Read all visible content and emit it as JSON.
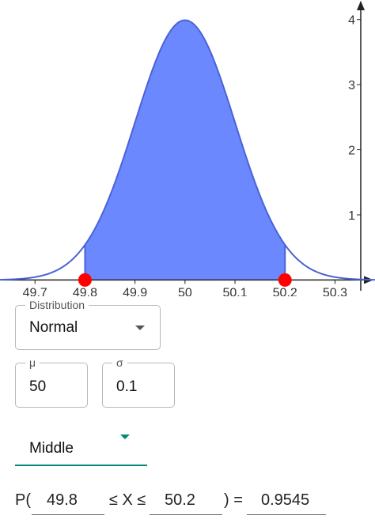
{
  "chart_data": {
    "type": "area",
    "x_tick_labels": [
      "49.7",
      "49.8",
      "49.9",
      "50",
      "50.1",
      "50.2",
      "50.3"
    ],
    "x_ticks": [
      49.7,
      49.8,
      49.9,
      50,
      50.1,
      50.2,
      50.3
    ],
    "y_tick_labels": [
      "1",
      "2",
      "3",
      "4"
    ],
    "y_ticks": [
      1,
      2,
      3,
      4
    ],
    "xlim": [
      49.63,
      50.38
    ],
    "ylim": [
      -0.25,
      4.3
    ],
    "mean": 50,
    "sd": 0.1,
    "shaded_interval": [
      49.8,
      50.2
    ],
    "colors": {
      "curve": "#4a63d6",
      "fill": "#6b88ff",
      "points": "#ff0000",
      "axis": "#222222"
    }
  },
  "distribution": {
    "label": "Distribution",
    "value": "Normal"
  },
  "mu": {
    "label": "μ",
    "value": "50"
  },
  "sigma": {
    "label": "σ",
    "value": "0.1"
  },
  "interval": {
    "value": "Middle",
    "accent": "#00897b"
  },
  "probability": {
    "prefix": "P(",
    "lower": "49.8",
    "middle": "≤ X ≤",
    "upper": "50.2",
    "equals": ") =",
    "result": "0.9545"
  }
}
